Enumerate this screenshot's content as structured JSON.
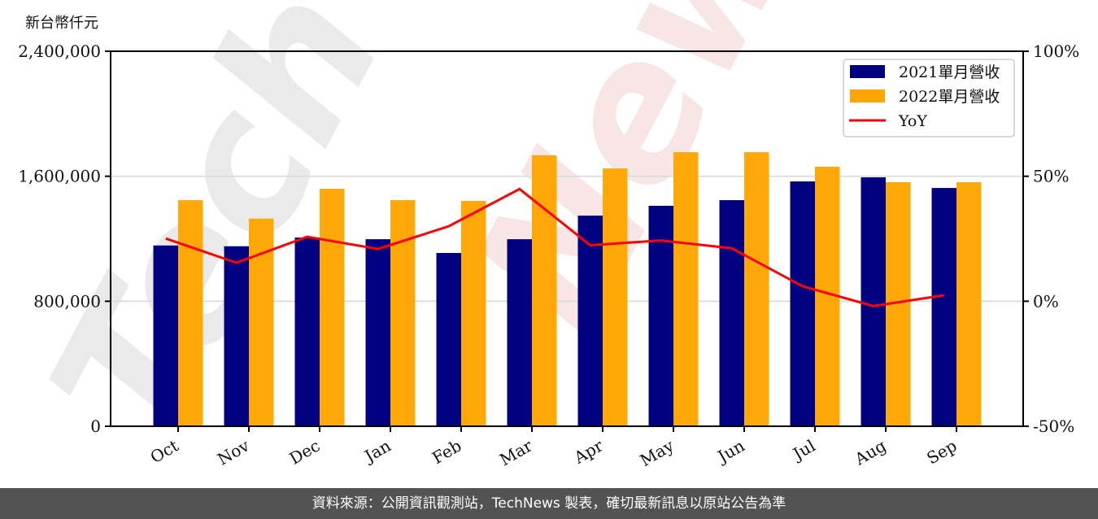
{
  "unit_label": "新台幣仟元",
  "footer": {
    "text": "資料來源：公開資訊觀測站，TechNews 製表，確切最新訊息以原站公告為準"
  },
  "watermark": "TechNews",
  "colors": {
    "series_2021": "#000080",
    "series_2022": "#ffa500",
    "yoy": "#ff0000",
    "grid": "#d9d9d9",
    "footer_bg": "#535353"
  },
  "legend": {
    "items": [
      {
        "label": "2021單月營收",
        "type": "bar",
        "color": "#000080"
      },
      {
        "label": "2022單月營收",
        "type": "bar",
        "color": "#ffa500"
      },
      {
        "label": "YoY",
        "type": "line",
        "color": "#ff0000"
      }
    ]
  },
  "chart_data": {
    "type": "bar",
    "title": "",
    "xlabel": "",
    "ylabel": "新台幣仟元",
    "categories": [
      "Oct",
      "Nov",
      "Dec",
      "Jan",
      "Feb",
      "Mar",
      "Apr",
      "May",
      "Jun",
      "Jul",
      "Aug",
      "Sep"
    ],
    "series": [
      {
        "name": "2021單月營收",
        "type": "bar",
        "axis": "left",
        "values": [
          1157000,
          1152000,
          1208000,
          1197000,
          1109000,
          1197000,
          1348000,
          1411000,
          1447000,
          1567000,
          1593000,
          1525000
        ]
      },
      {
        "name": "2022單月營收",
        "type": "bar",
        "axis": "left",
        "values": [
          1447000,
          1329000,
          1520000,
          1447000,
          1442000,
          1734000,
          1650000,
          1754000,
          1754000,
          1661000,
          1562000,
          1562000
        ]
      },
      {
        "name": "YoY",
        "type": "line",
        "axis": "right",
        "unit": "%",
        "values": [
          25.1,
          15.4,
          25.8,
          20.9,
          30.0,
          44.9,
          22.4,
          24.3,
          21.2,
          6.0,
          -1.9,
          2.4
        ]
      }
    ],
    "ylim": [
      0,
      2400000
    ],
    "yticks": [
      0,
      800000,
      1600000,
      2400000
    ],
    "ytick_labels": [
      "0",
      "800,000",
      "1,600,000",
      "2,400,000"
    ],
    "y2lim": [
      -50,
      100
    ],
    "y2ticks": [
      -50,
      0,
      50,
      100
    ],
    "y2tick_labels": [
      "-50%",
      "0%",
      "50%",
      "100%"
    ],
    "grid": "horizontal",
    "legend_position": "upper right"
  }
}
